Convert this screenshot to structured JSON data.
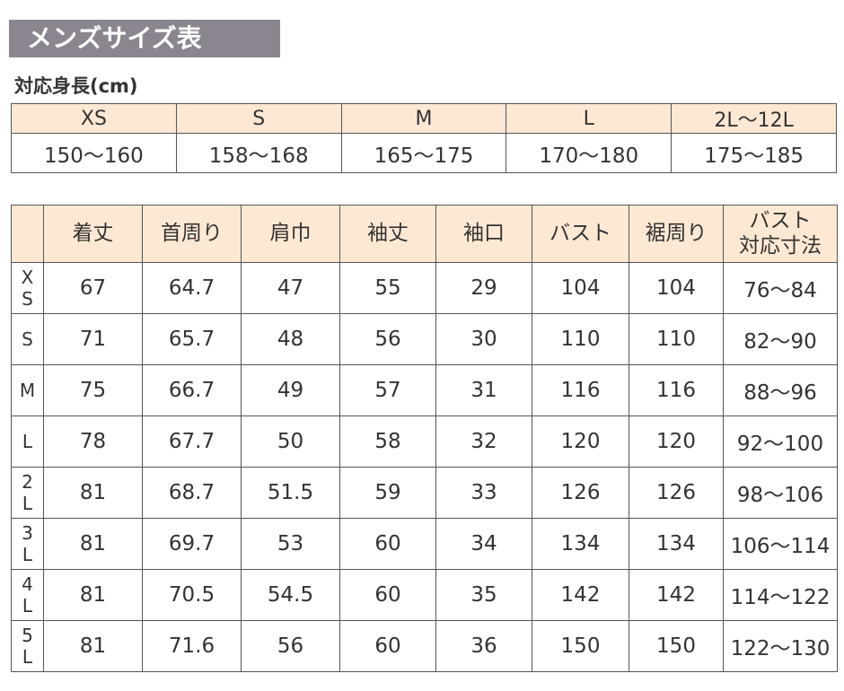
{
  "header": {
    "title": "メンズサイズ表",
    "subtitle": "対応身長(cm)"
  },
  "height_table": {
    "sizes": [
      "XS",
      "S",
      "M",
      "L",
      "2L～12L"
    ],
    "heights": [
      "150～160",
      "158～168",
      "165～175",
      "170～180",
      "175～185"
    ]
  },
  "size_table": {
    "columns": [
      "着丈",
      "首周り",
      "肩巾",
      "袖丈",
      "袖口",
      "バスト",
      "裾周り",
      "バスト\n対応寸法"
    ],
    "rows": [
      {
        "size": "XS",
        "values": [
          67,
          64.7,
          47,
          55,
          29,
          104,
          104,
          "76～84"
        ]
      },
      {
        "size": "S",
        "values": [
          71,
          65.7,
          48,
          56,
          30,
          110,
          110,
          "82～90"
        ]
      },
      {
        "size": "M",
        "values": [
          75,
          66.7,
          49,
          57,
          31,
          116,
          116,
          "88～96"
        ]
      },
      {
        "size": "L",
        "values": [
          78,
          67.7,
          50,
          58,
          32,
          120,
          120,
          "92～100"
        ]
      },
      {
        "size": "2L",
        "values": [
          81,
          68.7,
          51.5,
          59,
          33,
          126,
          126,
          "98～106"
        ]
      },
      {
        "size": "3L",
        "values": [
          81,
          69.7,
          53,
          60,
          34,
          134,
          134,
          "106～114"
        ]
      },
      {
        "size": "4L",
        "values": [
          81,
          70.5,
          54.5,
          60,
          35,
          142,
          142,
          "114～122"
        ]
      },
      {
        "size": "5L",
        "values": [
          81,
          71.6,
          56,
          60,
          36,
          150,
          150,
          "122～130"
        ]
      }
    ]
  }
}
